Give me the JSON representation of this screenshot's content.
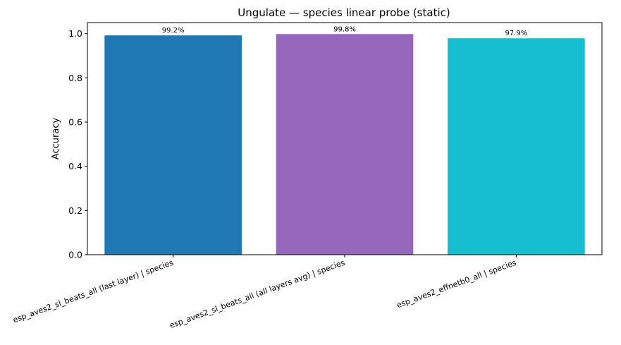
{
  "chart_data": {
    "type": "bar",
    "title": "Ungulate — species linear probe (static)",
    "xlabel": "",
    "ylabel": "Accuracy",
    "ylim": [
      0,
      1.05
    ],
    "yticks": [
      0.0,
      0.2,
      0.4,
      0.6,
      0.8,
      1.0
    ],
    "ytick_labels": [
      "0.0",
      "0.2",
      "0.4",
      "0.6",
      "0.8",
      "1.0"
    ],
    "categories": [
      "esp_aves2_sl_beats_all (last layer) | species",
      "esp_aves2_sl_beats_all (all layers avg) | species",
      "esp_aves2_effnetb0_all | species"
    ],
    "values": [
      0.992,
      0.998,
      0.979
    ],
    "data_labels": [
      "99.2%",
      "99.8%",
      "97.9%"
    ],
    "colors": [
      "#1f77b4",
      "#9467bd",
      "#17becf"
    ],
    "grid": false,
    "legend": "none"
  }
}
